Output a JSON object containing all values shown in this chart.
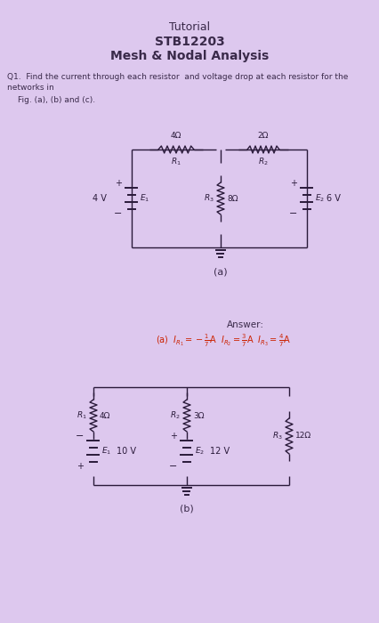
{
  "bg_color": "#ddc8ee",
  "title1": "Tutorial",
  "title2": "STB12203",
  "title3": "Mesh & Nodal Analysis",
  "q1_line1": "Q1.  Find the current through each resistor  and voltage drop at each resistor for the",
  "q1_line2": "networks in",
  "fig_label": "Fig. (a), (b) and (c).",
  "answer_label": "Answer:",
  "answer_a": "(a)  $I_{R_1} = -\\frac{1}{7}$A  $I_{R_2} = \\frac{3}{7}$A  $I_{R_3} = \\frac{4}{7}$A",
  "fig_a_label": "(a)",
  "fig_b_label": "(b)",
  "text_color": "#3a2a4a",
  "circuit_color": "#2a1a3a",
  "answer_color": "#cc2200"
}
